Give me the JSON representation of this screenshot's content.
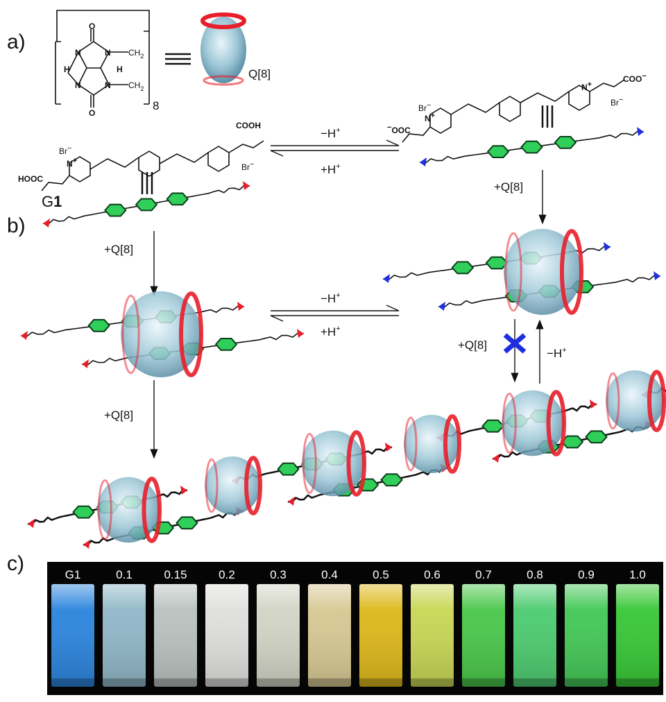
{
  "panel_labels": [
    "a)",
    "b)",
    "c)"
  ],
  "host": {
    "label": "Q[8]",
    "repeat_count": "8",
    "nitrogen": "N",
    "oxygen": "O",
    "hydrogen": "H",
    "methylene": "CH",
    "subscript": "2"
  },
  "guest": {
    "name_prefix": "G",
    "name_number": "1",
    "counterion": "Br",
    "minus": "−",
    "plus": "+",
    "acid": "COOH",
    "acid_left": "HOOC",
    "carboxylate": "COO",
    "carboxylate_left": "OOC",
    "nitrogen": "N"
  },
  "reactions": {
    "deprotonation": "−H",
    "protonation": "+H",
    "charge": "+",
    "add_host": "+Q[8]"
  },
  "vials": {
    "labels": [
      "G1",
      "0.1",
      "0.15",
      "0.2",
      "0.3",
      "0.4",
      "0.5",
      "0.6",
      "0.7",
      "0.8",
      "0.9",
      "1.0"
    ],
    "colors": [
      "#2f8ff0",
      "#9cc7d8",
      "#c9d2d0",
      "#f2f2f0",
      "#e4e6d6",
      "#e9d9a0",
      "#f0c81c",
      "#d9e85a",
      "#4fd84f",
      "#52dc78",
      "#48d85c",
      "#3cd83a"
    ]
  }
}
